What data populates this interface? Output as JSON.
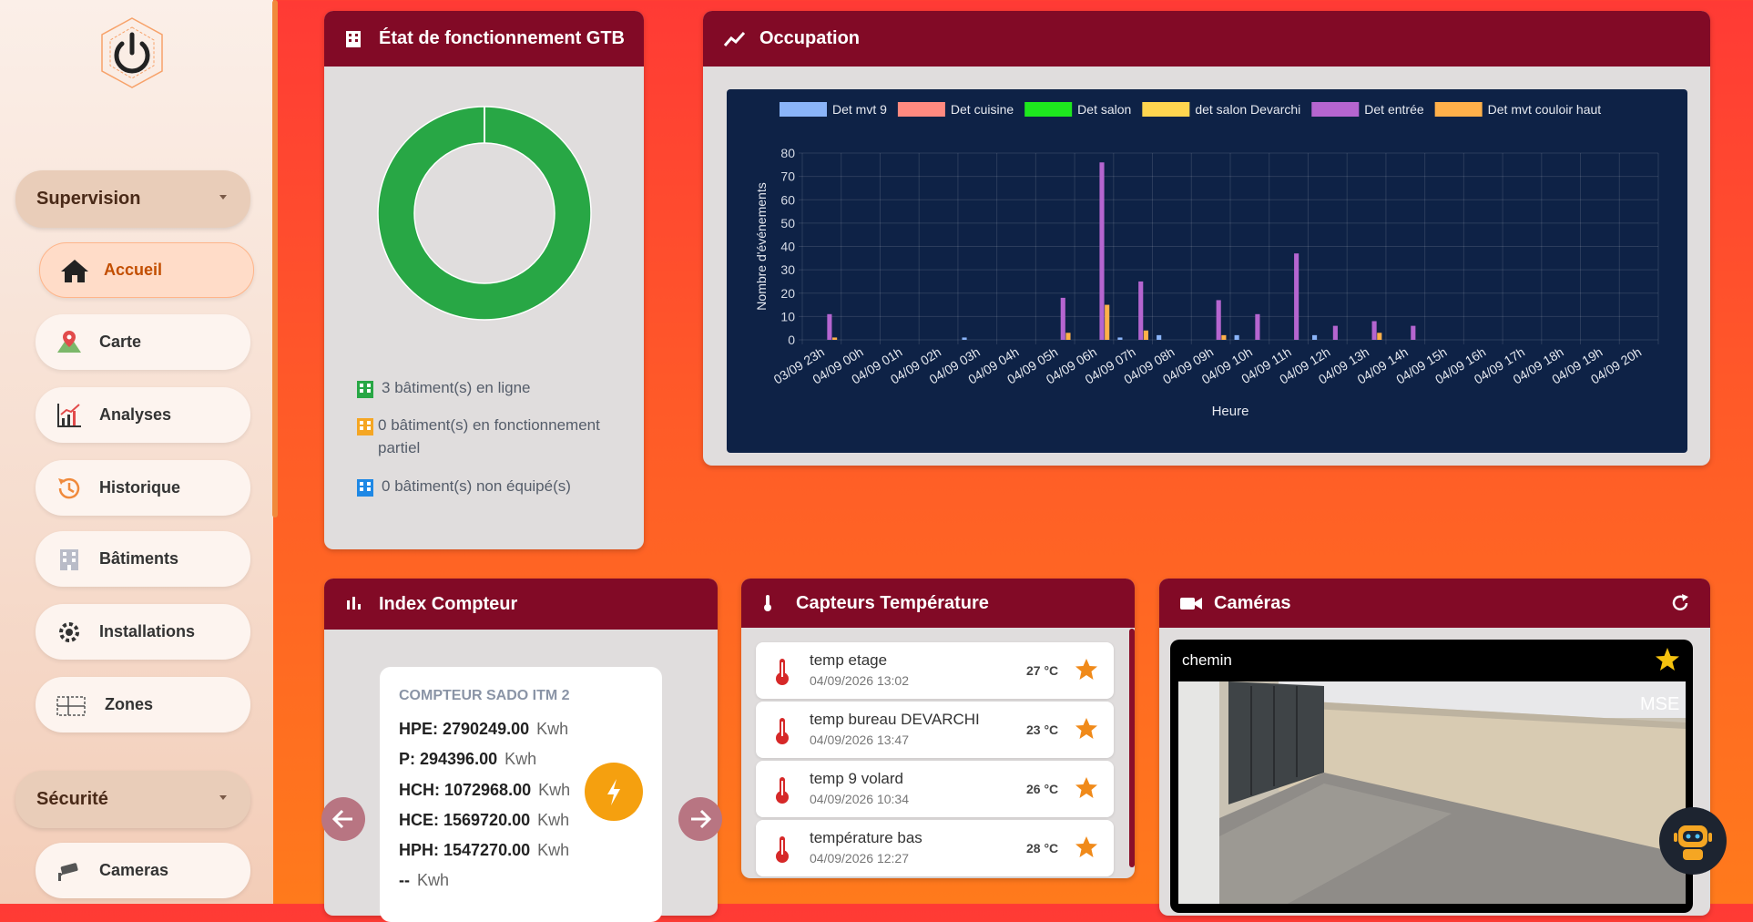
{
  "sidebar": {
    "groups": [
      {
        "label": "Supervision",
        "items": [
          "Accueil",
          "Carte",
          "Analyses",
          "Historique",
          "Bâtiments",
          "Installations",
          "Zones"
        ]
      },
      {
        "label": "Sécurité",
        "items": [
          "Cameras"
        ]
      }
    ]
  },
  "gtb": {
    "title": "État de fonctionnement GTB",
    "statuses": [
      {
        "count": 3,
        "label": "bâtiment(s) en ligne",
        "color": "#28a745"
      },
      {
        "count": 0,
        "label": "bâtiment(s) en fonctionnement partiel",
        "color": "#f5a623"
      },
      {
        "count": 0,
        "label": "bâtiment(s) non équipé(s)",
        "color": "#1e88e5"
      }
    ]
  },
  "occupation": {
    "title": "Occupation",
    "chart_data": {
      "type": "bar",
      "y_label": "Nombre d'événements",
      "x_label": "Heure",
      "categories": [
        "03/09 23h",
        "04/09 00h",
        "04/09 01h",
        "04/09 02h",
        "04/09 03h",
        "04/09 04h",
        "04/09 05h",
        "04/09 06h",
        "04/09 07h",
        "04/09 08h",
        "04/09 09h",
        "04/09 10h",
        "04/09 11h",
        "04/09 12h",
        "04/09 13h",
        "04/09 14h",
        "04/09 15h",
        "04/09 16h",
        "04/09 17h",
        "04/09 18h",
        "04/09 19h",
        "04/09 20h"
      ],
      "series": [
        {
          "name": "Det mvt 9",
          "color": "#8ab4f8",
          "values": [
            0,
            0,
            0,
            0,
            1,
            0,
            0,
            0,
            1,
            2,
            0,
            2,
            0,
            2,
            0,
            0,
            0,
            0,
            0,
            0,
            0,
            0
          ]
        },
        {
          "name": "Det cuisine",
          "color": "#ff8a80",
          "values": [
            0,
            0,
            0,
            0,
            0,
            0,
            0,
            0,
            0,
            0,
            0,
            0,
            0,
            0,
            0,
            0,
            0,
            0,
            0,
            0,
            0,
            0
          ]
        },
        {
          "name": "Det salon",
          "color": "#1ee81e",
          "values": [
            0,
            0,
            0,
            0,
            0,
            0,
            0,
            0,
            0,
            0,
            0,
            0,
            0,
            0,
            0,
            0,
            0,
            0,
            0,
            0,
            0,
            0
          ]
        },
        {
          "name": "det salon Devarchi",
          "color": "#ffd54f",
          "values": [
            0,
            0,
            0,
            0,
            0,
            0,
            0,
            0,
            0,
            0,
            0,
            0,
            0,
            0,
            0,
            0,
            0,
            0,
            0,
            0,
            0,
            0
          ]
        },
        {
          "name": "Det entrée",
          "color": "#b565d0",
          "values": [
            11,
            0,
            0,
            0,
            0,
            0,
            18,
            76,
            25,
            0,
            17,
            11,
            37,
            6,
            8,
            6,
            0,
            0,
            0,
            0,
            0,
            0
          ]
        },
        {
          "name": "Det mvt couloir haut",
          "color": "#ffb04a",
          "values": [
            1,
            0,
            0,
            0,
            0,
            0,
            3,
            15,
            4,
            0,
            2,
            0,
            0,
            0,
            3,
            0,
            0,
            0,
            0,
            0,
            0,
            0
          ]
        }
      ],
      "ylim": [
        0,
        80
      ],
      "yticks": [
        0,
        10,
        20,
        30,
        40,
        50,
        60,
        70,
        80
      ],
      "grid": true,
      "legend": "top"
    }
  },
  "compteur": {
    "title": "Index Compteur",
    "card": {
      "name": "COMPTEUR SADO ITM 2",
      "rows": [
        {
          "label": "HPE: 2790249.00",
          "unit": "Kwh"
        },
        {
          "label": "P: 294396.00",
          "unit": "Kwh"
        },
        {
          "label": "HCH: 1072968.00",
          "unit": "Kwh"
        },
        {
          "label": "HCE: 1569720.00",
          "unit": "Kwh"
        },
        {
          "label": "HPH: 1547270.00",
          "unit": "Kwh"
        },
        {
          "label": "--",
          "unit": "Kwh"
        }
      ]
    }
  },
  "temperatures": {
    "title": "Capteurs Température",
    "sensors": [
      {
        "name": "temp etage",
        "date": "04/09/2026 13:02",
        "temp": "27 °C"
      },
      {
        "name": "temp bureau DEVARCHI",
        "date": "04/09/2026 13:47",
        "temp": "23 °C"
      },
      {
        "name": "temp 9 volard",
        "date": "04/09/2026 10:34",
        "temp": "26 °C"
      },
      {
        "name": "température bas",
        "date": "04/09/2026 12:27",
        "temp": "28 °C"
      }
    ]
  },
  "cameras": {
    "title": "Caméras",
    "items": [
      {
        "name": "chemin",
        "overlay": "MSE"
      }
    ]
  }
}
